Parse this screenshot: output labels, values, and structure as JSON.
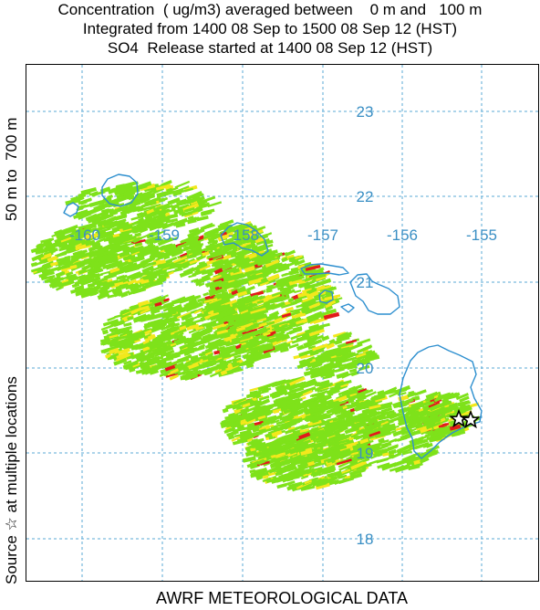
{
  "titles": {
    "line1": "Concentration  ( ug/m3) averaged between    0 m and   100 m",
    "line2": "Integrated from 1400 08 Sep to 1500 08 Sep 12 (HST)",
    "line3": "SO4  Release started at 1400 08 Sep 12 (HST)"
  },
  "side_label": {
    "source": "Source ☆ at multiple locations",
    "height": "50 m to  700 m"
  },
  "footer": "AWRF METEOROLOGICAL DATA",
  "grid": {
    "lon_labels": [
      "-160",
      "-159",
      "-158",
      "-157",
      "-156",
      "-155"
    ],
    "lat_labels": [
      "23",
      "22",
      "21",
      "20",
      "19",
      "18"
    ]
  },
  "colors": {
    "plume_low": "#7ee21a",
    "plume_mid": "#f2e81c",
    "plume_high": "#e21b1b",
    "coast": "#2d8fcf",
    "grid": "#5aa9d6",
    "grid_label": "#3a8fc4"
  },
  "source_marker": "star-icon"
}
